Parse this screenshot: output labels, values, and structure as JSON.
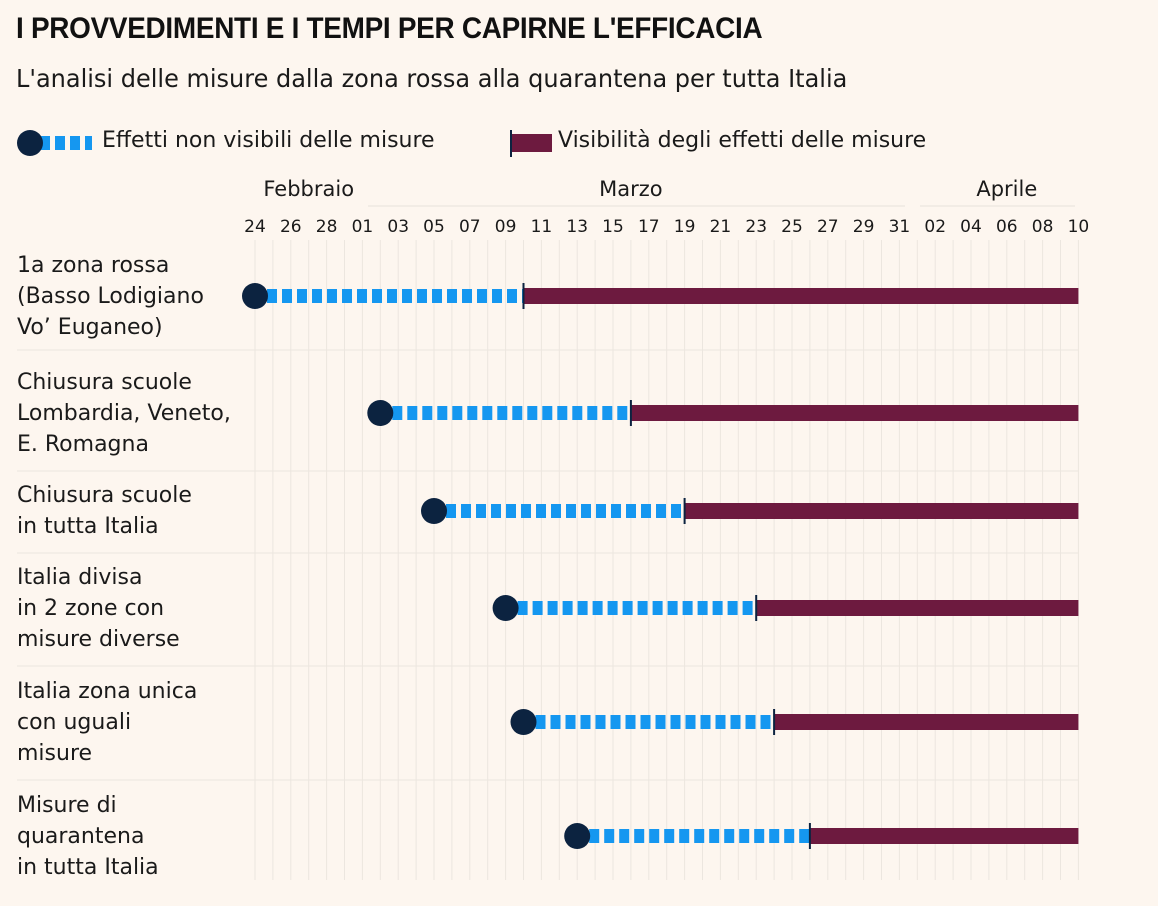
{
  "chart_data": {
    "type": "gantt",
    "title": "I PROVVEDIMENTI E I TEMPI PER CAPIRNE L'EFFICACIA",
    "subtitle": "L'analisi delle misure dalla zona rossa alla quarantena per tutta Italia",
    "legend": [
      {
        "label": "Effetti non visibili delle misure",
        "color": "#1597f0",
        "style": "dashed-with-dot",
        "dot_color": "#0c2340"
      },
      {
        "label": "Visibilità degli effetti delle misure",
        "color": "#6d1a3f",
        "style": "solid"
      }
    ],
    "months": [
      {
        "label": "Febbraio",
        "day_index": 3
      },
      {
        "label": "Marzo",
        "day_index": 21
      },
      {
        "label": "Aprile",
        "day_index": 42
      }
    ],
    "tick_labels": [
      "24",
      "26",
      "28",
      "01",
      "03",
      "05",
      "07",
      "09",
      "11",
      "13",
      "15",
      "17",
      "19",
      "21",
      "23",
      "25",
      "27",
      "29",
      "31",
      "02",
      "04",
      "06",
      "08",
      "10"
    ],
    "x_start": "2020-02-24",
    "x_end": "2020-04-10",
    "tasks": [
      {
        "label_lines": [
          "1a zona rossa",
          "(Basso Lodigiano",
          "Vo’ Euganeo)"
        ],
        "start": "2020-02-24",
        "effects_visible": "2020-03-10",
        "end": "2020-04-10"
      },
      {
        "label_lines": [
          "Chiusura scuole",
          "Lombardia, Veneto,",
          "E. Romagna"
        ],
        "start": "2020-03-02",
        "effects_visible": "2020-03-16",
        "end": "2020-04-10"
      },
      {
        "label_lines": [
          "Chiusura scuole",
          "in tutta Italia"
        ],
        "start": "2020-03-05",
        "effects_visible": "2020-03-19",
        "end": "2020-04-10"
      },
      {
        "label_lines": [
          "Italia divisa",
          "in 2 zone con",
          "misure diverse"
        ],
        "start": "2020-03-09",
        "effects_visible": "2020-03-23",
        "end": "2020-04-10"
      },
      {
        "label_lines": [
          "Italia zona unica",
          "con uguali",
          "misure"
        ],
        "start": "2020-03-10",
        "effects_visible": "2020-03-24",
        "end": "2020-04-10"
      },
      {
        "label_lines": [
          "Misure di",
          "quarantena",
          "in tutta Italia"
        ],
        "start": "2020-03-13",
        "effects_visible": "2020-03-26",
        "end": "2020-04-10"
      }
    ]
  }
}
